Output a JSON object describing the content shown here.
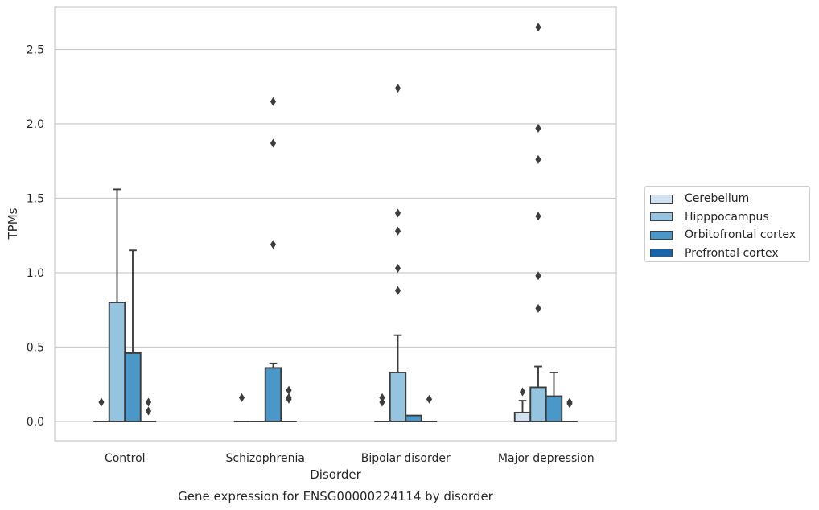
{
  "chart_data": {
    "type": "box",
    "title": "",
    "caption": "Gene expression for ENSG00000224114 by disorder",
    "xlabel": "Disorder",
    "ylabel": "TPMs",
    "ylim": [
      -0.13,
      2.79
    ],
    "yticks": [
      "0.0",
      "0.5",
      "1.0",
      "1.5",
      "2.0",
      "2.5"
    ],
    "ytick_values": [
      0.0,
      0.5,
      1.0,
      1.5,
      2.0,
      2.5
    ],
    "grid": "horizontal",
    "legend_position": "right",
    "categories": [
      "Control",
      "Schizophrenia",
      "Bipolar disorder",
      "Major depression"
    ],
    "series": [
      {
        "name": "Cerebellum",
        "color": "#d0e1f2",
        "boxes": [
          {
            "q1": 0,
            "median": 0,
            "q3": 0,
            "whislo": 0,
            "whishi": 0,
            "fliers": []
          },
          {
            "q1": 0,
            "median": 0,
            "q3": 0,
            "whislo": 0,
            "whishi": 0,
            "fliers": []
          },
          {
            "q1": 0,
            "median": 0,
            "q3": 0,
            "whislo": 0,
            "whishi": 0,
            "fliers": []
          },
          {
            "q1": 0,
            "median": 0,
            "q3": 0.06,
            "whislo": 0,
            "whishi": 0.14,
            "fliers": [
              0.2
            ]
          }
        ]
      },
      {
        "name": "Hipppocampus",
        "color": "#94c4df",
        "boxes": [
          {
            "q1": 0,
            "median": 0,
            "q3": 0.8,
            "whislo": 0,
            "whishi": 1.56,
            "fliers": []
          },
          {
            "q1": 0,
            "median": 0,
            "q3": 0,
            "whislo": 0,
            "whishi": 0,
            "fliers": []
          },
          {
            "q1": 0,
            "median": 0,
            "q3": 0.33,
            "whislo": 0,
            "whishi": 0.58,
            "fliers": [
              0.88,
              1.03,
              1.28,
              1.4,
              2.24
            ]
          },
          {
            "q1": 0,
            "median": 0,
            "q3": 0.23,
            "whislo": 0,
            "whishi": 0.37,
            "fliers": [
              0.76,
              0.98,
              1.38,
              1.76,
              1.97,
              2.65
            ]
          }
        ]
      },
      {
        "name": "Orbitofrontal cortex",
        "color": "#4a98c9",
        "boxes": [
          {
            "q1": 0,
            "median": 0,
            "q3": 0.46,
            "whislo": 0,
            "whishi": 1.15,
            "fliers": []
          },
          {
            "q1": 0,
            "median": 0,
            "q3": 0.36,
            "whislo": 0,
            "whishi": 0.39,
            "fliers": [
              1.19,
              1.87,
              2.15
            ]
          },
          {
            "q1": 0,
            "median": 0,
            "q3": 0.04,
            "whislo": 0,
            "whishi": 0.04,
            "fliers": []
          },
          {
            "q1": 0,
            "median": 0,
            "q3": 0.17,
            "whislo": 0,
            "whishi": 0.33,
            "fliers": []
          }
        ]
      },
      {
        "name": "Prefrontal cortex",
        "color": "#1764ab",
        "boxes": [
          {
            "q1": 0,
            "median": 0,
            "q3": 0,
            "whislo": 0,
            "whishi": 0,
            "fliers": [
              0.07,
              0.13
            ]
          },
          {
            "q1": 0,
            "median": 0,
            "q3": 0,
            "whislo": 0,
            "whishi": 0,
            "fliers": [
              0.15,
              0.16,
              0.21
            ]
          },
          {
            "q1": 0,
            "median": 0,
            "q3": 0,
            "whislo": 0,
            "whishi": 0,
            "fliers": [
              0.15
            ]
          },
          {
            "q1": 0,
            "median": 0,
            "q3": 0,
            "whislo": 0,
            "whishi": 0,
            "fliers": [
              0.12,
              0.13
            ]
          }
        ]
      }
    ],
    "extra_fliers": [
      {
        "category": 0,
        "series": 0,
        "values": [
          0.13
        ]
      },
      {
        "category": 1,
        "series": 0,
        "values": [
          0.16
        ]
      },
      {
        "category": 2,
        "series": 0,
        "values": [
          0.13,
          0.16
        ]
      }
    ]
  }
}
